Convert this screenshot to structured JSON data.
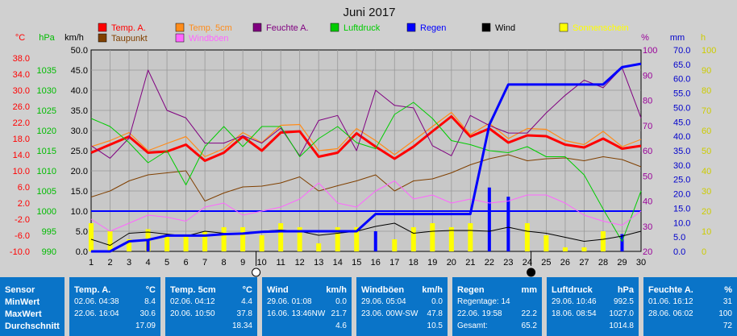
{
  "chart_data": {
    "type": "line",
    "title": "Juni 2017",
    "x": [
      1,
      2,
      3,
      4,
      5,
      6,
      7,
      8,
      9,
      10,
      11,
      12,
      13,
      14,
      15,
      16,
      17,
      18,
      19,
      20,
      21,
      22,
      23,
      24,
      25,
      26,
      27,
      28,
      29,
      30
    ],
    "x_range": [
      1,
      30
    ],
    "grid": true,
    "axes": [
      {
        "unit": "°C",
        "color": "#ff0000",
        "range": [
          -10,
          40
        ],
        "ticks": [
          "-10.0",
          "-6.0",
          "-2.0",
          "2.0",
          "6.0",
          "10.0",
          "14.0",
          "18.0",
          "22.0",
          "26.0",
          "30.0",
          "34.0",
          "38.0"
        ]
      },
      {
        "unit": "hPa",
        "color": "#00bb00",
        "range": [
          990,
          1040
        ],
        "ticks": [
          "990",
          "995",
          "1000",
          "1005",
          "1010",
          "1015",
          "1020",
          "1025",
          "1030",
          "1035"
        ]
      },
      {
        "unit": "km/h",
        "color": "#000000",
        "range": [
          0,
          50
        ],
        "ticks": [
          "0.0",
          "5.0",
          "10.0",
          "15.0",
          "20.0",
          "25.0",
          "30.0",
          "35.0",
          "40.0",
          "45.0",
          "50.0"
        ]
      },
      {
        "unit": "%",
        "color": "#990099",
        "range": [
          20,
          100
        ],
        "ticks": [
          "20",
          "30",
          "40",
          "50",
          "60",
          "70",
          "80",
          "90",
          "100"
        ]
      },
      {
        "unit": "mm",
        "color": "#0000cc",
        "range": [
          0,
          70
        ],
        "ticks": [
          "0.0",
          "5.0",
          "10.0",
          "15.0",
          "20.0",
          "25.0",
          "30.0",
          "35.0",
          "40.0",
          "45.0",
          "50.0",
          "55.0",
          "60.0",
          "65.0",
          "70.0"
        ]
      },
      {
        "unit": "h",
        "color": "#cccc00",
        "range": [
          0,
          100
        ],
        "ticks": [
          "0",
          "10",
          "20",
          "30",
          "40",
          "50",
          "60",
          "70",
          "80",
          "90",
          "100"
        ]
      }
    ],
    "moon_phases": [
      {
        "day": 9.7,
        "phase": "full"
      },
      {
        "day": 24.2,
        "phase": "new"
      }
    ],
    "legend": [
      {
        "name": "Temp. A.",
        "color": "#ff0000"
      },
      {
        "name": "Temp. 5cm",
        "color": "#ff8c1a"
      },
      {
        "name": "Feuchte A.",
        "color": "#800080"
      },
      {
        "name": "Luftdruck",
        "color": "#00cc00"
      },
      {
        "name": "Regen",
        "color": "#0000ff"
      },
      {
        "name": "Wind",
        "color": "#000000"
      },
      {
        "name": "Sonnenschein",
        "color": "#ffff00"
      },
      {
        "name": "Taupunkt",
        "color": "#804000"
      },
      {
        "name": "Windböen",
        "color": "#ff66ff"
      }
    ],
    "series": [
      {
        "name": "Temp. A.",
        "axis": 0,
        "color": "#ff0000",
        "width": 3,
        "values": [
          14.5,
          16.5,
          18.5,
          14.5,
          14.8,
          16.5,
          12.5,
          14.5,
          18.5,
          15.0,
          19.5,
          19.8,
          13.5,
          14.5,
          19.3,
          16.0,
          13.0,
          16.0,
          19.8,
          23.5,
          18.5,
          20.5,
          17.0,
          18.8,
          18.6,
          16.5,
          15.8,
          18.0,
          15.5,
          16.2
        ]
      },
      {
        "name": "Temp. 5cm",
        "axis": 0,
        "color": "#ff8c1a",
        "width": 1.2,
        "values": [
          16.0,
          17.5,
          19.5,
          15.0,
          16.8,
          18.5,
          13.5,
          15.5,
          19.5,
          17.0,
          21.3,
          21.5,
          15.0,
          15.5,
          20.5,
          17.5,
          14.0,
          17.5,
          21.0,
          24.5,
          19.0,
          21.8,
          18.0,
          20.5,
          20.3,
          17.5,
          16.5,
          19.8,
          16.0,
          17.8
        ]
      },
      {
        "name": "Taupunkt",
        "axis": 0,
        "color": "#804000",
        "width": 1,
        "values": [
          3.5,
          5.0,
          7.5,
          9.0,
          9.5,
          10.0,
          2.5,
          4.5,
          6.0,
          6.2,
          7.0,
          8.5,
          5.0,
          6.3,
          7.5,
          9.0,
          5.0,
          7.5,
          8.0,
          9.5,
          11.5,
          13.0,
          14.0,
          12.5,
          13.0,
          13.2,
          12.5,
          13.5,
          12.8,
          11.0
        ]
      },
      {
        "name": "Feuchte A.",
        "axis": 3,
        "color": "#800080",
        "width": 1,
        "values": [
          62,
          57,
          65,
          92,
          76,
          73,
          63,
          63,
          66,
          63,
          69,
          58,
          72,
          74,
          60,
          84,
          78,
          77,
          62,
          58,
          74,
          70,
          67,
          67,
          75,
          82,
          88,
          85,
          93,
          73
        ]
      },
      {
        "name": "Luftdruck",
        "axis": 1,
        "color": "#00cc00",
        "width": 1,
        "values": [
          1023.0,
          1021.0,
          1017.0,
          1012.0,
          1015.0,
          1006.5,
          1016.0,
          1021.0,
          1016.0,
          1021.0,
          1021.0,
          1013.5,
          1018.0,
          1021.0,
          1017.0,
          1015.5,
          1024.0,
          1027.0,
          1023.0,
          1017.5,
          1016.5,
          1015.0,
          1014.5,
          1016.0,
          1013.5,
          1013.5,
          1009.0,
          1000.5,
          992.5,
          1005.0
        ]
      },
      {
        "name": "Wind",
        "axis": 2,
        "color": "#000000",
        "width": 1,
        "values": [
          3.0,
          1.5,
          4.5,
          4.8,
          4.3,
          3.8,
          5.0,
          4.5,
          4.5,
          5.0,
          5.3,
          5.0,
          4.0,
          4.5,
          5.0,
          6.2,
          7.0,
          4.5,
          5.0,
          5.2,
          5.2,
          5.0,
          6.0,
          5.0,
          4.5,
          3.5,
          2.5,
          3.0,
          3.8,
          5.0
        ]
      },
      {
        "name": "Windböen",
        "axis": 2,
        "color": "#ff66ff",
        "width": 1,
        "values": [
          8.0,
          5.0,
          7.0,
          9.0,
          8.5,
          7.5,
          11.0,
          12.0,
          9.0,
          10.0,
          11.0,
          13.0,
          17.0,
          12.0,
          11.0,
          15.0,
          17.5,
          13.0,
          14.0,
          12.0,
          13.0,
          12.0,
          12.5,
          14.0,
          14.0,
          12.0,
          9.0,
          7.5,
          6.5,
          10.0
        ]
      },
      {
        "name": "Regen",
        "axis": 4,
        "color": "#0000ff",
        "width": 3,
        "values": [
          0.0,
          0.0,
          3.5,
          4.0,
          5.5,
          5.5,
          5.5,
          6.0,
          6.2,
          6.8,
          7.0,
          7.0,
          7.0,
          7.0,
          7.0,
          13.0,
          13.0,
          13.0,
          13.0,
          13.0,
          13.0,
          44.0,
          58.0,
          58.0,
          58.0,
          58.0,
          58.0,
          58.0,
          64.0,
          65.2
        ]
      },
      {
        "name": "Sonnenschein",
        "axis": 5,
        "type": "bar",
        "color": "#ffff00",
        "values": [
          14,
          10,
          6,
          11,
          8,
          8,
          10,
          12,
          12,
          8,
          14,
          12,
          4,
          12,
          12,
          0,
          6,
          12,
          14,
          12,
          14,
          0,
          0,
          14,
          8,
          2,
          2,
          10,
          0,
          0
        ]
      },
      {
        "name": "Regen (Tag)",
        "axis": 4,
        "type": "bar",
        "color": "#0000ff",
        "values": [
          0,
          0,
          0,
          4.0,
          0,
          0,
          0,
          0,
          0,
          0,
          0,
          0,
          0,
          0,
          0,
          7.0,
          0,
          0,
          0,
          0,
          0,
          22.2,
          19.0,
          0,
          0,
          0,
          0,
          0,
          6.0,
          0
        ]
      }
    ]
  },
  "stats": {
    "labels": {
      "sensor": "Sensor",
      "min": "MinWert",
      "max": "MaxWert",
      "avg": "Durchschnitt"
    },
    "blocks": [
      {
        "title": "Temp. A.",
        "unit": "°C",
        "min_time": "02.06.  04:38",
        "min_val": "8.4",
        "max_time": "22.06.  16:04",
        "max_val": "30.6",
        "avg": "17.09"
      },
      {
        "title": "Temp. 5cm",
        "unit": "°C",
        "min_time": "02.06.  04:12",
        "min_val": "4.4",
        "max_time": "20.06.  10:50",
        "max_val": "37.8",
        "avg": "18.34"
      },
      {
        "title": "Wind",
        "unit": "km/h",
        "min_time": "29.06.  01:08",
        "min_val": "0.0",
        "max_time": "16.06.  13:46NW",
        "max_val": "21.7",
        "avg": "4.6"
      },
      {
        "title": "Windböen",
        "unit": "km/h",
        "min_time": "29.06.  05:04",
        "min_val": "0.0",
        "max_time": "23.06.  00W-SW",
        "max_val": "47.8",
        "avg": "10.5"
      },
      {
        "title": "Regen",
        "unit": "mm",
        "min_time": "Regentage: 14",
        "min_val": "",
        "max_time": "22.06.  19:58",
        "max_val": "22.2",
        "avg_label": "Gesamt:",
        "avg": "65.2"
      },
      {
        "title": "Luftdruck",
        "unit": "hPa",
        "min_time": "29.06.  10:46",
        "min_val": "992.5",
        "max_time": "18.06.  08:54",
        "max_val": "1027.0",
        "avg": "1014.8"
      },
      {
        "title": "Feuchte A.",
        "unit": "%",
        "min_time": "01.06.  16:12",
        "min_val": "31",
        "max_time": "28.06.  06:02",
        "max_val": "100",
        "avg": "72"
      }
    ]
  }
}
